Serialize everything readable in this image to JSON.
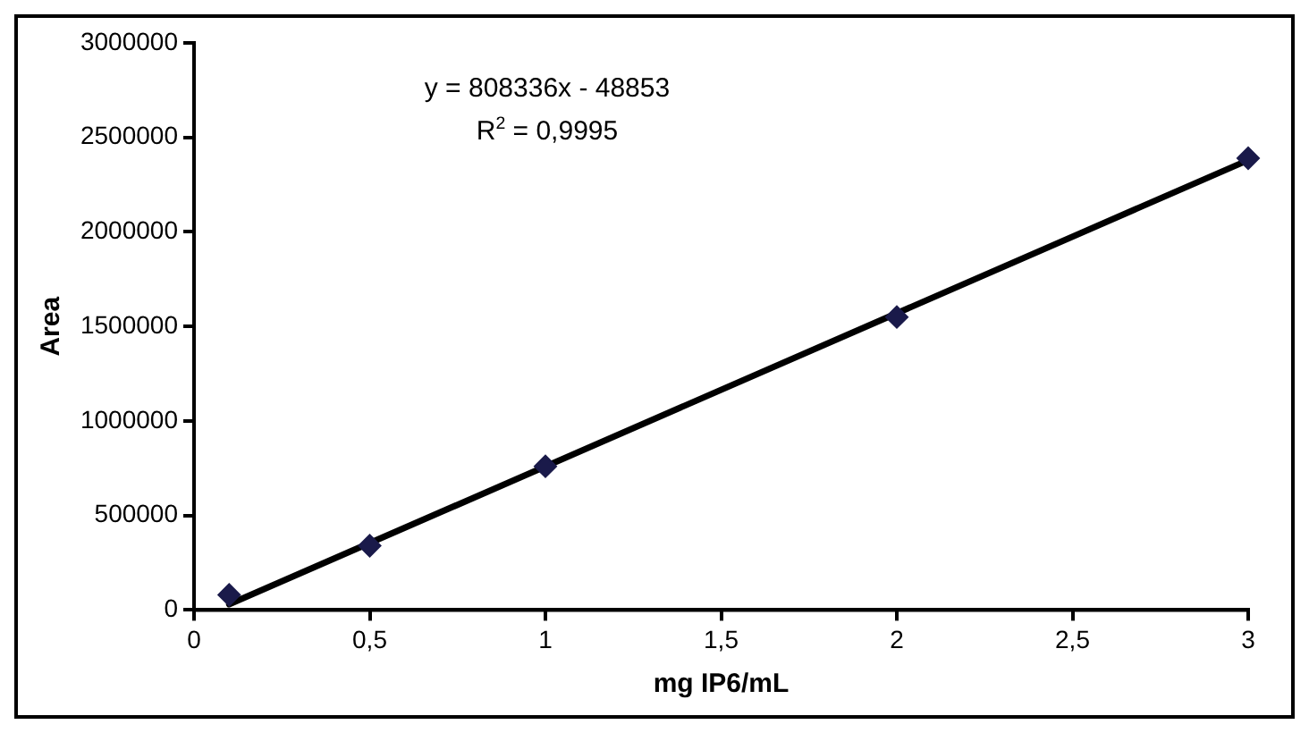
{
  "chart_data": {
    "type": "scatter",
    "xlabel": "mg IP6/mL",
    "ylabel": "Area",
    "annotations": [
      "y = 808336x - 48853",
      "R$^{2}$ = 0,9995"
    ],
    "series": [
      {
        "type": "scatter",
        "x": [
          0.1,
          0.5,
          1,
          2,
          3
        ],
        "values": [
          80000,
          340000,
          760000,
          1550000,
          2390000
        ],
        "color": "#1a1a4a",
        "marker": "diamond"
      },
      {
        "type": "line",
        "x": [
          0.1,
          3
        ],
        "values": [
          30000,
          2380000
        ],
        "color": "#000000",
        "marker": "none",
        "line_style": "solid"
      }
    ],
    "xlim": [
      0,
      3
    ],
    "xticks": [
      0,
      {
        "value": 0.5,
        "label": "0,5"
      },
      1,
      {
        "value": 1.5,
        "label": "1,5"
      },
      2,
      {
        "value": 2.5,
        "label": "2,5"
      },
      3
    ],
    "ylim": [
      0,
      3000000
    ],
    "yticks": [
      0,
      500000,
      1000000,
      1500000,
      2000000,
      2500000,
      3000000
    ],
    "grid": false,
    "legend": false
  }
}
